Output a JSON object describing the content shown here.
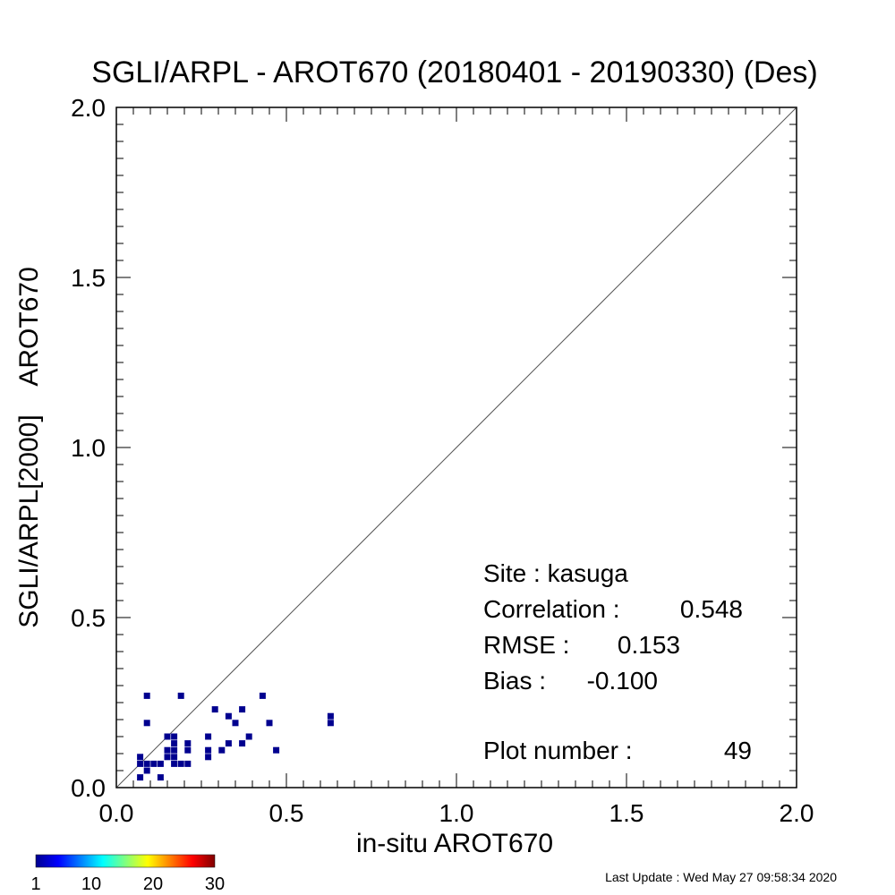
{
  "chart_data": {
    "type": "scatter",
    "title": "SGLI/ARPL - AROT670 (20180401 - 20190330) (Des)",
    "xlabel": "in-situ AROT670",
    "ylabel": "SGLI/ARPL[2000]    AROT670",
    "xlim": [
      0.0,
      2.0
    ],
    "ylim": [
      0.0,
      2.0
    ],
    "x_ticks": [
      "0.0",
      "0.5",
      "1.0",
      "1.5",
      "2.0"
    ],
    "y_ticks": [
      "0.0",
      "0.5",
      "1.0",
      "1.5",
      "2.0"
    ],
    "reference_line": "1:1",
    "grid": false,
    "point_color": "#00008f",
    "points": [
      {
        "x": 0.07,
        "y": 0.03
      },
      {
        "x": 0.07,
        "y": 0.07
      },
      {
        "x": 0.07,
        "y": 0.09
      },
      {
        "x": 0.09,
        "y": 0.05
      },
      {
        "x": 0.09,
        "y": 0.07
      },
      {
        "x": 0.11,
        "y": 0.07
      },
      {
        "x": 0.13,
        "y": 0.07
      },
      {
        "x": 0.13,
        "y": 0.03
      },
      {
        "x": 0.15,
        "y": 0.09
      },
      {
        "x": 0.15,
        "y": 0.11
      },
      {
        "x": 0.15,
        "y": 0.15
      },
      {
        "x": 0.17,
        "y": 0.07
      },
      {
        "x": 0.17,
        "y": 0.09
      },
      {
        "x": 0.17,
        "y": 0.11
      },
      {
        "x": 0.17,
        "y": 0.13
      },
      {
        "x": 0.17,
        "y": 0.15
      },
      {
        "x": 0.19,
        "y": 0.07
      },
      {
        "x": 0.21,
        "y": 0.07
      },
      {
        "x": 0.21,
        "y": 0.11
      },
      {
        "x": 0.21,
        "y": 0.13
      },
      {
        "x": 0.27,
        "y": 0.09
      },
      {
        "x": 0.27,
        "y": 0.11
      },
      {
        "x": 0.27,
        "y": 0.15
      },
      {
        "x": 0.31,
        "y": 0.11
      },
      {
        "x": 0.33,
        "y": 0.13
      },
      {
        "x": 0.35,
        "y": 0.19
      },
      {
        "x": 0.37,
        "y": 0.13
      },
      {
        "x": 0.39,
        "y": 0.15
      },
      {
        "x": 0.45,
        "y": 0.19
      },
      {
        "x": 0.47,
        "y": 0.11
      },
      {
        "x": 0.29,
        "y": 0.23
      },
      {
        "x": 0.33,
        "y": 0.21
      },
      {
        "x": 0.37,
        "y": 0.23
      },
      {
        "x": 0.43,
        "y": 0.27
      },
      {
        "x": 0.09,
        "y": 0.19
      },
      {
        "x": 0.09,
        "y": 0.27
      },
      {
        "x": 0.19,
        "y": 0.27
      },
      {
        "x": 0.63,
        "y": 0.19
      },
      {
        "x": 0.63,
        "y": 0.21
      }
    ],
    "colorbar": {
      "range": [
        1,
        30
      ],
      "tick_labels": [
        "1",
        "10",
        "20",
        "30"
      ]
    }
  },
  "stats": {
    "site": "Site : kasuga",
    "correlation_label": "Correlation :",
    "correlation_value": "0.548",
    "rmse_label": "RMSE :",
    "rmse_value": "0.153",
    "bias_label": "Bias :",
    "bias_value": "-0.100",
    "plot_number_label": "Plot number :",
    "plot_number_value": "49"
  },
  "footer": {
    "last_update": "Last Update : Wed May 27 09:58:34 2020"
  }
}
